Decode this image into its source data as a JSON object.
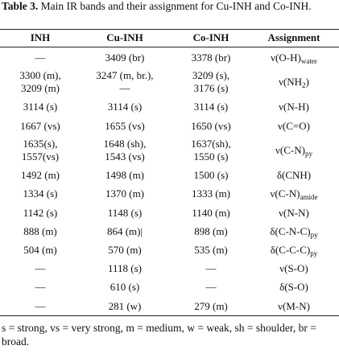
{
  "caption": {
    "label": "Table 3.",
    "text": "Main IR bands and their assignment for Cu-INH and Co-INH."
  },
  "table": {
    "headers": [
      "INH",
      "Cu-INH",
      "Co-INH",
      "Assignment"
    ],
    "rows": [
      [
        [
          "—"
        ],
        [
          "3409 (br)"
        ],
        [
          "3378 (br)"
        ],
        [
          {
            "main": "ν(O-H)",
            "sub": "water"
          }
        ]
      ],
      [
        [
          "3300 (m),",
          "3209 (m)"
        ],
        [
          "3247 (m, br.),",
          "—"
        ],
        [
          "3209 (s),",
          "3176 (s)"
        ],
        [
          {
            "main": "ν(NH",
            "sub": "2",
            "after": ")"
          }
        ]
      ],
      [
        [
          "3114 (s)"
        ],
        [
          "3114 (s)"
        ],
        [
          "3114 (s)"
        ],
        [
          {
            "main": "ν(N-H)"
          }
        ]
      ],
      [
        [
          "1667 (vs)"
        ],
        [
          "1655 (vs)"
        ],
        [
          "1650 (vs)"
        ],
        [
          {
            "main": "ν(C=O)"
          }
        ]
      ],
      [
        [
          "1635(s),",
          "1557(vs)"
        ],
        [
          "1648 (sh),",
          "1543 (vs)"
        ],
        [
          "1637(sh),",
          "1550 (s)"
        ],
        [
          {
            "main": "ν(C-N)",
            "sub": "py"
          }
        ]
      ],
      [
        [
          "1492 (m)"
        ],
        [
          "1498 (m)"
        ],
        [
          "1500 (s)"
        ],
        [
          {
            "main": "δ(CNH)"
          }
        ]
      ],
      [
        [
          "1334 (s)"
        ],
        [
          "1370 (m)"
        ],
        [
          "1333 (m)"
        ],
        [
          {
            "main": "ν(C-N)",
            "sub": "amide"
          }
        ]
      ],
      [
        [
          "1142 (s)"
        ],
        [
          "1148 (s)"
        ],
        [
          "1140 (m)"
        ],
        [
          {
            "main": "ν(N-N)"
          }
        ]
      ],
      [
        [
          "888 (m)"
        ],
        [
          "864 (m)|"
        ],
        [
          "898 (m)"
        ],
        [
          {
            "main": "δ(C-N-C)",
            "sub": "py"
          }
        ]
      ],
      [
        [
          "504 (m)"
        ],
        [
          "570 (m)"
        ],
        [
          "535 (m)"
        ],
        [
          {
            "main": "δ(C-C-C)",
            "sub": "py"
          }
        ]
      ],
      [
        [
          "—"
        ],
        [
          "1118 (s)"
        ],
        [
          "—"
        ],
        [
          {
            "main": "ν(S-O)"
          }
        ]
      ],
      [
        [
          "—"
        ],
        [
          "610 (s)"
        ],
        [
          "—"
        ],
        [
          {
            "main": "δ(S-O)"
          }
        ]
      ],
      [
        [
          "—"
        ],
        [
          "281 (w)"
        ],
        [
          "279 (m)"
        ],
        [
          {
            "main": "ν(M-N)"
          }
        ]
      ]
    ]
  },
  "footnote": "s = strong, vs = very strong, m = medium, w = weak, sh = shoulder, br = broad."
}
